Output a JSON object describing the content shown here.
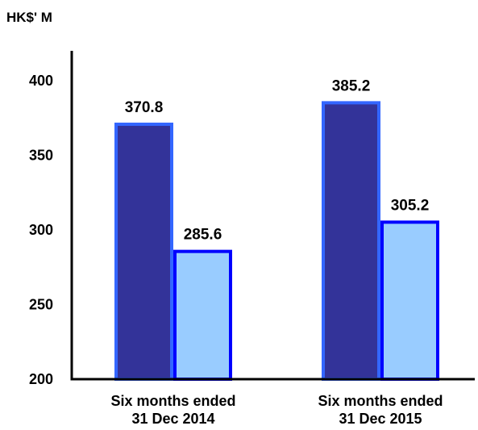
{
  "chart_data": {
    "type": "bar",
    "unit_label": "HK$' M",
    "categories": [
      [
        "Six months ended",
        "31 Dec 2014"
      ],
      [
        "Six months ended",
        "31 Dec 2015"
      ]
    ],
    "series": [
      {
        "values": [
          370.8,
          385.2
        ],
        "data_labels": [
          "370.8",
          "385.2"
        ],
        "fill": "#333399",
        "stroke": "#3366FF"
      },
      {
        "values": [
          285.6,
          305.2
        ],
        "data_labels": [
          "285.6",
          "305.2"
        ],
        "fill": "#99CCFF",
        "stroke": "#0000FF"
      }
    ],
    "ylim": [
      200,
      400
    ],
    "yticks": [
      200,
      250,
      300,
      350,
      400
    ],
    "ytick_labels": [
      "200",
      "250",
      "300",
      "350",
      "400"
    ],
    "grid": false,
    "legend": "none"
  }
}
